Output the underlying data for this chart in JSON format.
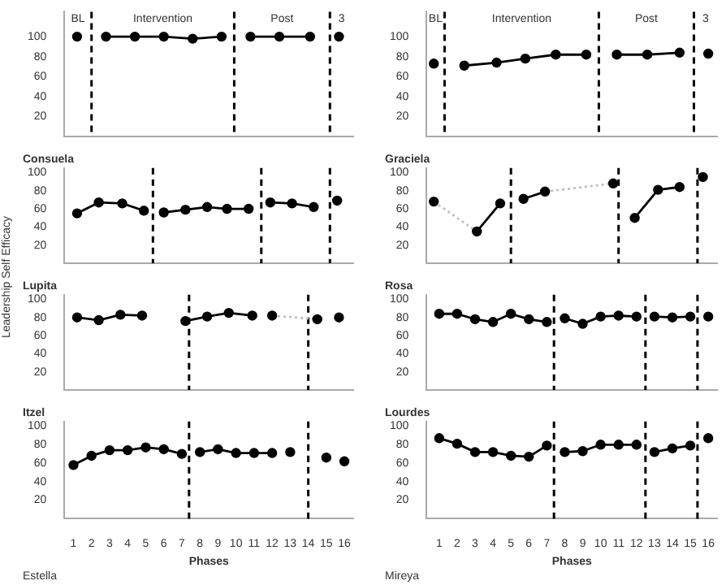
{
  "chart_data": [
    {
      "type": "line",
      "marker": "circle",
      "line_style": "solid",
      "xlim": [
        0.5,
        16.5
      ],
      "ylim": [
        0,
        125
      ],
      "yticks": [
        20,
        40,
        60,
        80,
        100
      ],
      "tick_labels": "y",
      "series": [
        {
          "color": "#000000",
          "x": [
            1.2
          ],
          "values": [
            100
          ]
        },
        {
          "color": "#000000",
          "x": [
            2.8,
            4.4,
            6.0,
            7.6,
            9.2
          ],
          "values": [
            100,
            100,
            100,
            98,
            100
          ]
        },
        {
          "color": "#000000",
          "x": [
            10.8,
            12.4,
            14.1
          ],
          "values": [
            100,
            100,
            100
          ]
        },
        {
          "color": "#000000",
          "x": [
            15.7
          ],
          "values": [
            100
          ]
        }
      ],
      "ref_lines": [
        {
          "axis": "x",
          "value": 2.0,
          "color": "#000000",
          "line_style": "dashed"
        },
        {
          "axis": "x",
          "value": 9.9,
          "color": "#000000",
          "line_style": "dashed"
        },
        {
          "axis": "x",
          "value": 15.2,
          "color": "#000000",
          "line_style": "dashed"
        }
      ],
      "annotations": [
        "BL",
        "Intervention",
        "Post",
        "3"
      ]
    },
    {
      "type": "line",
      "marker": "circle",
      "line_style": "solid",
      "xlim": [
        0.3,
        16.5
      ],
      "ylim": [
        0,
        125
      ],
      "yticks": [
        20,
        40,
        60,
        80,
        100
      ],
      "tick_labels": "y",
      "series": [
        {
          "color": "#000000",
          "x": [
            0.7
          ],
          "values": [
            73
          ]
        },
        {
          "color": "#000000",
          "x": [
            2.4,
            4.2,
            5.8,
            7.5,
            9.2
          ],
          "values": [
            71,
            74,
            78,
            82,
            82
          ]
        },
        {
          "color": "#000000",
          "x": [
            10.9,
            12.6,
            14.4
          ],
          "values": [
            82,
            82,
            84
          ]
        },
        {
          "color": "#000000",
          "x": [
            16.0
          ],
          "values": [
            83
          ]
        }
      ],
      "ref_lines": [
        {
          "axis": "x",
          "value": 1.3,
          "color": "#000000",
          "line_style": "dashed"
        },
        {
          "axis": "x",
          "value": 9.9,
          "color": "#000000",
          "line_style": "dashed"
        },
        {
          "axis": "x",
          "value": 15.2,
          "color": "#000000",
          "line_style": "dashed"
        }
      ],
      "annotations": [
        "BL",
        "Intervention",
        "Post",
        "3"
      ]
    },
    {
      "type": "line",
      "title": "Consuela",
      "marker": "circle",
      "line_style": "solid",
      "xlim": [
        0.5,
        16.5
      ],
      "ylim": [
        0,
        105
      ],
      "yticks": [
        20,
        40,
        60,
        80,
        100
      ],
      "tick_labels": "y",
      "series": [
        {
          "color": "#000000",
          "x": [
            1.2,
            2.4,
            3.7,
            4.9
          ],
          "values": [
            55,
            67,
            66,
            58
          ]
        },
        {
          "color": "#000000",
          "x": [
            6.0,
            7.2,
            8.4,
            9.5,
            10.7
          ],
          "values": [
            56,
            59,
            62,
            60,
            60
          ]
        },
        {
          "color": "#000000",
          "x": [
            11.9,
            13.1,
            14.3
          ],
          "values": [
            67,
            66,
            62
          ]
        },
        {
          "color": "#000000",
          "x": [
            15.6
          ],
          "values": [
            69
          ]
        }
      ],
      "ref_lines": [
        {
          "axis": "x",
          "value": 5.4,
          "color": "#000000",
          "line_style": "dashed"
        },
        {
          "axis": "x",
          "value": 11.4,
          "color": "#000000",
          "line_style": "dashed"
        },
        {
          "axis": "x",
          "value": 15.2,
          "color": "#000000",
          "line_style": "dashed"
        }
      ]
    },
    {
      "type": "line",
      "title": "Graciela",
      "marker": "circle",
      "line_style": "solid",
      "xlim": [
        0.3,
        16.5
      ],
      "ylim": [
        0,
        105
      ],
      "yticks": [
        20,
        40,
        60,
        80,
        100
      ],
      "tick_labels": "y",
      "series": [
        {
          "color": "#bfbfbf",
          "x": [
            0.7,
            3.1
          ],
          "values": [
            68,
            35
          ],
          "marker": "none",
          "line_style": "dotted"
        },
        {
          "color": "#bfbfbf",
          "x": [
            6.9,
            10.7
          ],
          "values": [
            79,
            88
          ],
          "marker": "none",
          "line_style": "dotted"
        },
        {
          "color": "#000000",
          "x": [
            0.7
          ],
          "values": [
            68
          ]
        },
        {
          "color": "#000000",
          "x": [
            3.1,
            4.4
          ],
          "values": [
            35,
            66
          ]
        },
        {
          "color": "#000000",
          "x": [
            5.7,
            6.9
          ],
          "values": [
            71,
            79
          ]
        },
        {
          "color": "#000000",
          "x": [
            10.7
          ],
          "values": [
            88
          ]
        },
        {
          "color": "#000000",
          "x": [
            11.9,
            13.2,
            14.4
          ],
          "values": [
            50,
            81,
            84
          ]
        },
        {
          "color": "#000000",
          "x": [
            15.7
          ],
          "values": [
            95
          ]
        }
      ],
      "ref_lines": [
        {
          "axis": "x",
          "value": 5.0,
          "color": "#000000",
          "line_style": "dashed"
        },
        {
          "axis": "x",
          "value": 11.0,
          "color": "#000000",
          "line_style": "dashed"
        },
        {
          "axis": "x",
          "value": 15.4,
          "color": "#000000",
          "line_style": "dashed"
        }
      ]
    },
    {
      "type": "line",
      "title": "Lupita",
      "ylabel": "Leadership Self Efficacy",
      "marker": "circle",
      "line_style": "solid",
      "xlim": [
        0.5,
        16.5
      ],
      "ylim": [
        0,
        105
      ],
      "yticks": [
        20,
        40,
        60,
        80,
        100
      ],
      "tick_labels": "y",
      "series": [
        {
          "color": "#bfbfbf",
          "x": [
            12.0,
            14.5
          ],
          "values": [
            82,
            78
          ],
          "marker": "none",
          "line_style": "dotted"
        },
        {
          "color": "#000000",
          "x": [
            1.2,
            2.4,
            3.6,
            4.8
          ],
          "values": [
            80,
            77,
            83,
            82
          ]
        },
        {
          "color": "#000000",
          "x": [
            7.2,
            8.4,
            9.6,
            10.9
          ],
          "values": [
            76,
            81,
            85,
            82
          ]
        },
        {
          "color": "#000000",
          "x": [
            12.0
          ],
          "values": [
            82
          ]
        },
        {
          "color": "#000000",
          "x": [
            14.5
          ],
          "values": [
            78
          ]
        },
        {
          "color": "#000000",
          "x": [
            15.7
          ],
          "values": [
            80
          ]
        }
      ],
      "ref_lines": [
        {
          "axis": "x",
          "value": 7.4,
          "color": "#000000",
          "line_style": "dashed"
        },
        {
          "axis": "x",
          "value": 14.0,
          "color": "#000000",
          "line_style": "dashed"
        }
      ]
    },
    {
      "type": "line",
      "title": "Rosa",
      "marker": "circle",
      "line_style": "solid",
      "xlim": [
        0.3,
        16.5
      ],
      "ylim": [
        0,
        105
      ],
      "yticks": [
        20,
        40,
        60,
        80,
        100
      ],
      "tick_labels": "y",
      "series": [
        {
          "color": "#000000",
          "x": [
            1,
            2,
            3,
            4,
            5,
            6,
            7
          ],
          "values": [
            84,
            84,
            78,
            75,
            84,
            78,
            75
          ]
        },
        {
          "color": "#000000",
          "x": [
            8,
            9,
            10,
            11,
            12
          ],
          "values": [
            79,
            73,
            81,
            82,
            81
          ]
        },
        {
          "color": "#000000",
          "x": [
            13,
            14,
            15
          ],
          "values": [
            81,
            80,
            81
          ]
        },
        {
          "color": "#000000",
          "x": [
            16
          ],
          "values": [
            81
          ]
        }
      ],
      "ref_lines": [
        {
          "axis": "x",
          "value": 7.4,
          "color": "#000000",
          "line_style": "dashed"
        },
        {
          "axis": "x",
          "value": 12.5,
          "color": "#000000",
          "line_style": "dashed"
        },
        {
          "axis": "x",
          "value": 15.4,
          "color": "#000000",
          "line_style": "dashed"
        }
      ]
    },
    {
      "type": "line",
      "title": "Itzel",
      "xlabel": "Phases",
      "marker": "circle",
      "line_style": "solid",
      "xlim": [
        0.5,
        16.5
      ],
      "xticks": [
        1,
        2,
        3,
        4,
        5,
        6,
        7,
        8,
        9,
        10,
        11,
        12,
        13,
        14,
        15,
        16
      ],
      "ylim": [
        0,
        105
      ],
      "yticks": [
        20,
        40,
        60,
        80,
        100
      ],
      "series": [
        {
          "color": "#000000",
          "x": [
            1,
            2,
            3,
            4,
            5,
            6,
            7
          ],
          "values": [
            58,
            68,
            74,
            74,
            77,
            75,
            70
          ]
        },
        {
          "color": "#000000",
          "x": [
            8,
            9,
            10,
            11,
            12
          ],
          "values": [
            72,
            75,
            71,
            71,
            71
          ]
        },
        {
          "color": "#000000",
          "x": [
            13
          ],
          "values": [
            72
          ]
        },
        {
          "color": "#000000",
          "x": [
            15
          ],
          "values": [
            66
          ]
        },
        {
          "color": "#000000",
          "x": [
            16
          ],
          "values": [
            62
          ]
        }
      ],
      "ref_lines": [
        {
          "axis": "x",
          "value": 7.4,
          "color": "#000000",
          "line_style": "dashed"
        },
        {
          "axis": "x",
          "value": 14.0,
          "color": "#000000",
          "line_style": "dashed"
        }
      ],
      "annotations": [
        "Estella"
      ]
    },
    {
      "type": "line",
      "title": "Lourdes",
      "xlabel": "Phases",
      "marker": "circle",
      "line_style": "solid",
      "xlim": [
        0.3,
        16.5
      ],
      "xticks": [
        1,
        2,
        3,
        4,
        5,
        6,
        7,
        8,
        9,
        10,
        11,
        12,
        13,
        14,
        15,
        16
      ],
      "ylim": [
        0,
        105
      ],
      "yticks": [
        20,
        40,
        60,
        80,
        100
      ],
      "series": [
        {
          "color": "#000000",
          "x": [
            1,
            2,
            3,
            4,
            5,
            6,
            7
          ],
          "values": [
            87,
            81,
            72,
            72,
            68,
            67,
            79
          ]
        },
        {
          "color": "#000000",
          "x": [
            8,
            9,
            10,
            11,
            12
          ],
          "values": [
            72,
            73,
            80,
            80,
            80
          ]
        },
        {
          "color": "#000000",
          "x": [
            13,
            14,
            15
          ],
          "values": [
            72,
            76,
            79
          ]
        },
        {
          "color": "#000000",
          "x": [
            16
          ],
          "values": [
            87
          ]
        }
      ],
      "ref_lines": [
        {
          "axis": "x",
          "value": 7.4,
          "color": "#000000",
          "line_style": "dashed"
        },
        {
          "axis": "x",
          "value": 12.5,
          "color": "#000000",
          "line_style": "dashed"
        },
        {
          "axis": "x",
          "value": 15.4,
          "color": "#000000",
          "line_style": "dashed"
        }
      ],
      "annotations": [
        "Mireya"
      ]
    }
  ]
}
